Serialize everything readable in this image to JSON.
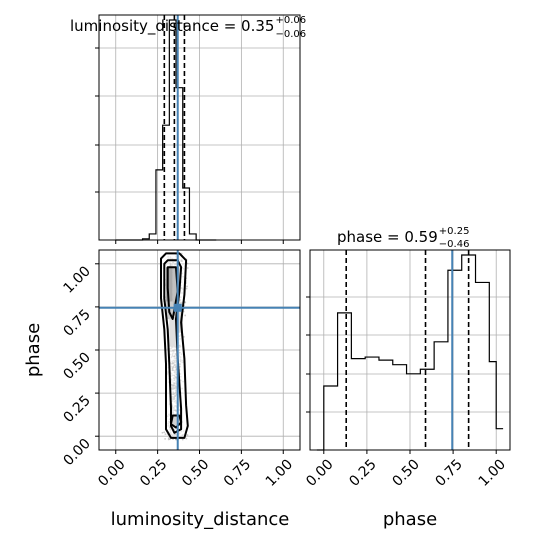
{
  "chart_data": {
    "type": "corner",
    "parameters": [
      "luminosity_distance",
      "phase"
    ],
    "truth": {
      "luminosity_distance": 0.37,
      "phase": 0.745
    },
    "axis_ticks": {
      "luminosity_distance": [
        "0.00",
        "0.25",
        "0.50",
        "0.75",
        "1.00"
      ],
      "phase": [
        "0.00",
        "0.25",
        "0.50",
        "0.75",
        "1.00"
      ]
    },
    "axis_ranges": {
      "luminosity_distance": [
        -0.1,
        1.1
      ],
      "phase": [
        -0.08,
        1.08
      ]
    },
    "grid": true,
    "marginals": {
      "luminosity_distance": {
        "title_main": "luminosity_distance = 0.35",
        "title_plus": "+0.06",
        "title_minus": "−0.06",
        "quantiles": [
          0.29,
          0.35,
          0.41
        ],
        "bin_edges": [
          0.0,
          0.04,
          0.08,
          0.12,
          0.16,
          0.2,
          0.24,
          0.28,
          0.32,
          0.36,
          0.4,
          0.44,
          0.48,
          0.52,
          0.56,
          0.6
        ],
        "counts": [
          0,
          0,
          0,
          0,
          1,
          5,
          58,
          95,
          182,
          126,
          43,
          5,
          0,
          0,
          0
        ]
      },
      "phase": {
        "title_main": "phase = 0.59",
        "title_plus": "+0.25",
        "title_minus": "−0.46",
        "quantiles": [
          0.13,
          0.59,
          0.84
        ],
        "bin_edges": [
          -0.04,
          0.0,
          0.04,
          0.08,
          0.12,
          0.16,
          0.2,
          0.24,
          0.28,
          0.32,
          0.36,
          0.4,
          0.44,
          0.48,
          0.52,
          0.56,
          0.6,
          0.64,
          0.68,
          0.72,
          0.76,
          0.8,
          0.84,
          0.88,
          0.92,
          0.96,
          1.0,
          1.04
        ],
        "counts": [
          0,
          42,
          42,
          90,
          90,
          60,
          60,
          61,
          61,
          59,
          59,
          56,
          56,
          50,
          50,
          53,
          53,
          71,
          71,
          118,
          118,
          128,
          128,
          110,
          110,
          58,
          14
        ]
      }
    },
    "joint": {
      "x": "luminosity_distance",
      "y": "phase",
      "density_cells": [
        {
          "x": [
            0.3,
            0.34
          ],
          "y": [
            0.78,
            0.98
          ],
          "level": 0.95
        },
        {
          "x": [
            0.34,
            0.38
          ],
          "y": [
            0.7,
            0.98
          ],
          "level": 0.7
        },
        {
          "x": [
            0.3,
            0.34
          ],
          "y": [
            0.68,
            0.78
          ],
          "level": 0.55
        },
        {
          "x": [
            0.32,
            0.36
          ],
          "y": [
            0.52,
            0.68
          ],
          "level": 0.35
        },
        {
          "x": [
            0.36,
            0.4
          ],
          "y": [
            0.6,
            0.78
          ],
          "level": 0.4
        },
        {
          "x": [
            0.34,
            0.38
          ],
          "y": [
            0.06,
            0.12
          ],
          "level": 0.5
        }
      ],
      "contours": [
        [
          [
            0.27,
            1.03
          ],
          [
            0.3,
            1.06
          ],
          [
            0.38,
            1.06
          ],
          [
            0.42,
            1.02
          ],
          [
            0.41,
            0.82
          ],
          [
            0.39,
            0.66
          ],
          [
            0.41,
            0.45
          ],
          [
            0.42,
            0.18
          ],
          [
            0.43,
            0.06
          ],
          [
            0.41,
            -0.01
          ],
          [
            0.33,
            -0.01
          ],
          [
            0.3,
            0.04
          ],
          [
            0.3,
            0.14
          ],
          [
            0.3,
            0.42
          ],
          [
            0.29,
            0.62
          ],
          [
            0.27,
            0.8
          ],
          [
            0.27,
            1.03
          ]
        ],
        [
          [
            0.29,
            1.0
          ],
          [
            0.31,
            1.02
          ],
          [
            0.37,
            1.02
          ],
          [
            0.39,
            0.98
          ],
          [
            0.38,
            0.84
          ],
          [
            0.36,
            0.68
          ],
          [
            0.37,
            0.45
          ],
          [
            0.39,
            0.16
          ],
          [
            0.39,
            0.04
          ],
          [
            0.35,
            0.02
          ],
          [
            0.33,
            0.06
          ],
          [
            0.33,
            0.16
          ],
          [
            0.32,
            0.42
          ],
          [
            0.31,
            0.62
          ],
          [
            0.29,
            0.8
          ],
          [
            0.29,
            1.0
          ]
        ],
        [
          [
            0.31,
            0.98
          ],
          [
            0.36,
            0.98
          ],
          [
            0.37,
            0.84
          ],
          [
            0.34,
            0.68
          ],
          [
            0.32,
            0.72
          ],
          [
            0.31,
            0.86
          ],
          [
            0.31,
            0.98
          ]
        ],
        [
          [
            0.33,
            0.07
          ],
          [
            0.34,
            0.12
          ],
          [
            0.38,
            0.12
          ],
          [
            0.39,
            0.08
          ],
          [
            0.36,
            0.05
          ],
          [
            0.33,
            0.07
          ]
        ]
      ]
    },
    "colors": {
      "hist": "#000000",
      "truth": "#4682b4",
      "grid": "#b0b0b0",
      "scatter": "#666666"
    },
    "xlabel_luminosity_distance": "luminosity_distance",
    "xlabel_phase": "phase",
    "ylabel_phase": "phase"
  }
}
